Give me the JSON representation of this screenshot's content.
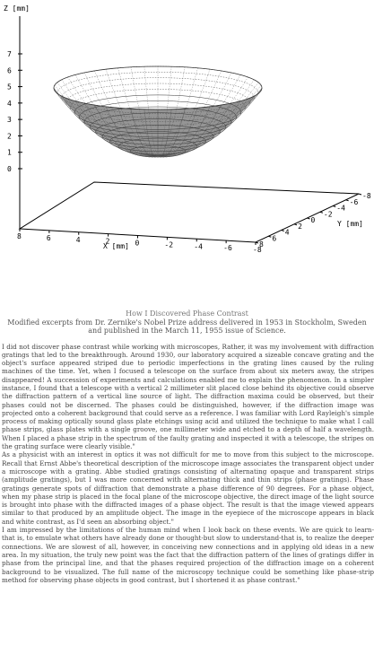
{
  "plot": {
    "z_axis_label": "Z [mm]",
    "x_axis_label": "X [mm]",
    "y_axis_label": "Y [mm]",
    "z_ticks": [
      "7",
      "6",
      "5",
      "4",
      "3",
      "2",
      "1",
      "0"
    ],
    "x_ticks": [
      "8",
      "6",
      "4",
      "2",
      "0",
      "-2",
      "-4",
      "-6",
      "-8"
    ],
    "y_ticks": [
      "8",
      "6",
      "4",
      "2",
      "0",
      "-2",
      "-4",
      "-6",
      "-8"
    ],
    "surface": "paraboloid",
    "surface_colors": {
      "mesh": "#444444",
      "fill": "#8a8a8a"
    }
  },
  "document": {
    "title": "How I Discovered Phase Contrast",
    "source": "Modified excerpts from Dr. Zernike's Nobel Prize address delivered in 1953 in Stockholm, Sweden and published in the March 11, 1955 issue of Science.",
    "paragraphs": [
      "I did not discover phase contrast while working with microscopes, Rather, it was my involvement with diffraction gratings that led to the breakthrough. Around 1930, our laboratory acquired a sizeable concave grating and the object's surface appeared striped due to periodic imperfections in the grating lines caused by the ruling machines of the time. Yet, when I focused a telescope on the surface from about six meters away, the stripes disappeared! A succession of experiments and calculations enabled me to explain the phenomenon. In a simpler instance, I found that a telescope with a vertical 2 millimeter slit placed close behind its objective could observe the diffraction pattern of a vertical line source of light. The diffraction maxima could be observed, but their phases could not be discerned. The phases could be distinguished, however, if the diffraction image was projected onto a coherent background that could serve as a reference. I was familiar with Lord Rayleigh's simple process of making optically sound glass plate etchings using acid and utilized the technique to make what I call phase strips, glass plates with a single groove, one millimeter wide and etched to a depth of half a wavelength. When I placed a phase strip in the spectrum of the faulty grating and inspected it with a telescope, the stripes on the grating surface were clearly visible.\"",
      "As a physicist with an interest in optics it was not difficult for me to move from this subject to the microscope. Recall that Ernst Abbe's theoretical description of the microscope image associates the transparent object under a microscope with a grating. Abbe studied gratings consisting of alternating opaque and transparent strips (amplitude gratings), but I was more concerned with alternating thick and thin strips (phase gratings). Phase gratings generate spots of diffraction that demonstrate a phase difference of 90 degrees. For a phase object, when my phase strip is placed in the focal plane of the microscope objective, the direct image of the light source is brought into phase with the diffracted images of a phase object. The result is that the image viewed appears similar to that produced by an amplitude object. The image in the eyepiece of the microscope appears in black and white contrast, as I'd seen an absorbing object.\"",
      "I am impressed by the limitations of the human mind when I look back on these events. We are quick to learn-that is, to emulate what others have already done or thought-but slow to understand-that is, to realize the deeper connections. We are slowest of all, however, in conceiving new connections and in applying old ideas in a new area. In my situation, the truly new point was the fact that the diffraction pattern of the lines of gratings differ in phase from the principal line, and that the phases required projection of the diffraction image on a coherent background to be visualized. The full name of the microscopy technique could be something like phase-strip method for observing phase objects in good contrast, but I shortened it as phase contrast.\""
    ]
  }
}
